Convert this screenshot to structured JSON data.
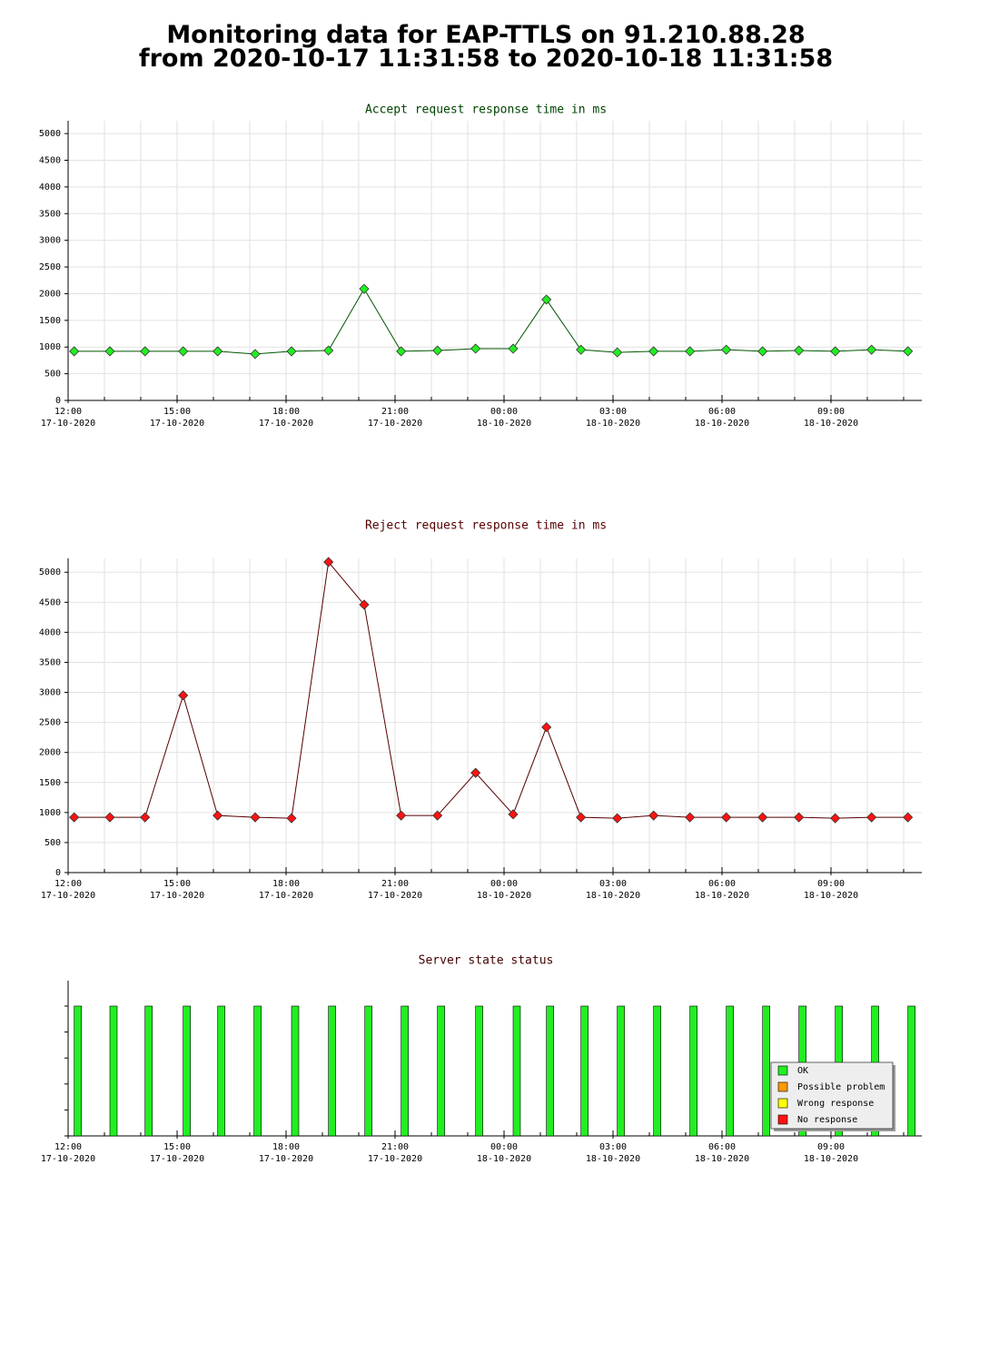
{
  "page_title": [
    "Monitoring data for EAP-TTLS on 91.210.88.28",
    "from 2020-10-17 11:31:58 to 2020-10-18 11:31:58"
  ],
  "chart_data": [
    {
      "type": "line",
      "title": "Accept request response time in ms",
      "title_color": "#004400",
      "x": [
        "2020-10-17 12:10",
        "2020-10-17 13:09",
        "2020-10-17 14:07",
        "2020-10-17 15:10",
        "2020-10-17 16:07",
        "2020-10-17 17:09",
        "2020-10-17 18:09",
        "2020-10-17 19:10",
        "2020-10-17 20:09",
        "2020-10-17 21:10",
        "2020-10-17 22:10",
        "2020-10-17 23:13",
        "2020-10-18 00:15",
        "2020-10-18 01:10",
        "2020-10-18 02:07",
        "2020-10-18 03:07",
        "2020-10-18 04:07",
        "2020-10-18 05:07",
        "2020-10-18 06:07",
        "2020-10-18 07:07",
        "2020-10-18 08:07",
        "2020-10-18 09:07",
        "2020-10-18 10:07",
        "2020-10-18 11:07"
      ],
      "values": [
        920,
        920,
        920,
        920,
        920,
        870,
        920,
        935,
        2090,
        920,
        935,
        970,
        970,
        1890,
        950,
        900,
        920,
        920,
        950,
        920,
        935,
        920,
        950,
        920
      ],
      "color": "#22ee22",
      "line_color": "#005500",
      "ylim": [
        0,
        5240
      ],
      "yticks": [
        0,
        500,
        1000,
        1500,
        2000,
        2500,
        3000,
        3500,
        4000,
        4500,
        5000
      ],
      "grid": true,
      "xlim": [
        "2020-10-17 12:00",
        "2020-10-18 11:30"
      ],
      "xticks": [
        {
          "value": "2020-10-17 12:00",
          "label": "12:00\n17-10-2020"
        },
        {
          "value": "2020-10-17 15:00",
          "label": "15:00\n17-10-2020"
        },
        {
          "value": "2020-10-17 18:00",
          "label": "18:00\n17-10-2020"
        },
        {
          "value": "2020-10-17 21:00",
          "label": "21:00\n17-10-2020"
        },
        {
          "value": "2020-10-18 00:00",
          "label": "00:00\n18-10-2020"
        },
        {
          "value": "2020-10-18 03:00",
          "label": "03:00\n18-10-2020"
        },
        {
          "value": "2020-10-18 06:00",
          "label": "06:00\n18-10-2020"
        },
        {
          "value": "2020-10-18 09:00",
          "label": "09:00\n18-10-2020"
        }
      ],
      "xminorticks": [
        "2020-10-17 13:00",
        "2020-10-17 14:00",
        "2020-10-17 16:00",
        "2020-10-17 17:00",
        "2020-10-17 19:00",
        "2020-10-17 20:00",
        "2020-10-17 22:00",
        "2020-10-17 23:00",
        "2020-10-18 01:00",
        "2020-10-18 02:00",
        "2020-10-18 04:00",
        "2020-10-18 05:00",
        "2020-10-18 07:00",
        "2020-10-18 08:00",
        "2020-10-18 10:00",
        "2020-10-18 11:00"
      ]
    },
    {
      "type": "line",
      "title": "Reject request response time in ms",
      "title_color": "#550000",
      "x": [
        "2020-10-17 12:10",
        "2020-10-17 13:09",
        "2020-10-17 14:07",
        "2020-10-17 15:10",
        "2020-10-17 16:07",
        "2020-10-17 17:09",
        "2020-10-17 18:09",
        "2020-10-17 19:10",
        "2020-10-17 20:09",
        "2020-10-17 21:10",
        "2020-10-17 22:10",
        "2020-10-17 23:13",
        "2020-10-18 00:15",
        "2020-10-18 01:10",
        "2020-10-18 02:07",
        "2020-10-18 03:07",
        "2020-10-18 04:07",
        "2020-10-18 05:07",
        "2020-10-18 06:07",
        "2020-10-18 07:07",
        "2020-10-18 08:07",
        "2020-10-18 09:07",
        "2020-10-18 10:07",
        "2020-10-18 11:07"
      ],
      "values": [
        920,
        920,
        920,
        2950,
        950,
        920,
        905,
        5170,
        4460,
        950,
        950,
        1660,
        970,
        2420,
        920,
        905,
        950,
        920,
        920,
        920,
        920,
        905,
        920,
        920
      ],
      "color": "#ff1111",
      "line_color": "#550000",
      "ylim": [
        0,
        5230
      ],
      "yticks": [
        0,
        500,
        1000,
        1500,
        2000,
        2500,
        3000,
        3500,
        4000,
        4500,
        5000
      ],
      "grid": true,
      "xlim": [
        "2020-10-17 12:00",
        "2020-10-18 11:30"
      ],
      "xticks": [
        {
          "value": "2020-10-17 12:00",
          "label": "12:00\n17-10-2020"
        },
        {
          "value": "2020-10-17 15:00",
          "label": "15:00\n17-10-2020"
        },
        {
          "value": "2020-10-17 18:00",
          "label": "18:00\n17-10-2020"
        },
        {
          "value": "2020-10-17 21:00",
          "label": "21:00\n17-10-2020"
        },
        {
          "value": "2020-10-18 00:00",
          "label": "00:00\n18-10-2020"
        },
        {
          "value": "2020-10-18 03:00",
          "label": "03:00\n18-10-2020"
        },
        {
          "value": "2020-10-18 06:00",
          "label": "06:00\n18-10-2020"
        },
        {
          "value": "2020-10-18 09:00",
          "label": "09:00\n18-10-2020"
        }
      ],
      "xminorticks": [
        "2020-10-17 13:00",
        "2020-10-17 14:00",
        "2020-10-17 16:00",
        "2020-10-17 17:00",
        "2020-10-17 19:00",
        "2020-10-17 20:00",
        "2020-10-17 22:00",
        "2020-10-17 23:00",
        "2020-10-18 01:00",
        "2020-10-18 02:00",
        "2020-10-18 04:00",
        "2020-10-18 05:00",
        "2020-10-18 07:00",
        "2020-10-18 08:00",
        "2020-10-18 10:00",
        "2020-10-18 11:00"
      ]
    },
    {
      "type": "status",
      "title": "Server state status",
      "title_color": "#440000",
      "x": [
        "2020-10-17 12:16",
        "2020-10-17 13:15",
        "2020-10-17 14:13",
        "2020-10-17 15:16",
        "2020-10-17 16:13",
        "2020-10-17 17:13",
        "2020-10-17 18:15",
        "2020-10-17 19:16",
        "2020-10-17 20:16",
        "2020-10-17 21:16",
        "2020-10-17 22:16",
        "2020-10-17 23:19",
        "2020-10-18 00:21",
        "2020-10-18 01:16",
        "2020-10-18 02:13",
        "2020-10-18 03:13",
        "2020-10-18 04:13",
        "2020-10-18 05:13",
        "2020-10-18 06:13",
        "2020-10-18 07:13",
        "2020-10-18 08:13",
        "2020-10-18 09:13",
        "2020-10-18 10:13",
        "2020-10-18 11:13"
      ],
      "values": [
        "OK",
        "OK",
        "OK",
        "OK",
        "OK",
        "OK",
        "OK",
        "OK",
        "OK",
        "OK",
        "OK",
        "OK",
        "OK",
        "OK",
        "OK",
        "OK",
        "OK",
        "OK",
        "OK",
        "OK",
        "OK",
        "OK",
        "OK",
        "OK"
      ],
      "legend": [
        {
          "name": "OK",
          "color": "#22ee22"
        },
        {
          "name": "Possible problem",
          "color": "#ff9900"
        },
        {
          "name": "Wrong response",
          "color": "#ffff00"
        },
        {
          "name": "No response",
          "color": "#ff1111"
        }
      ],
      "grid": false,
      "xlim": [
        "2020-10-17 12:00",
        "2020-10-18 11:30"
      ],
      "xticks": [
        {
          "value": "2020-10-17 12:00",
          "label": "12:00\n17-10-2020"
        },
        {
          "value": "2020-10-17 15:00",
          "label": "15:00\n17-10-2020"
        },
        {
          "value": "2020-10-17 18:00",
          "label": "18:00\n17-10-2020"
        },
        {
          "value": "2020-10-17 21:00",
          "label": "21:00\n17-10-2020"
        },
        {
          "value": "2020-10-18 00:00",
          "label": "00:00\n18-10-2020"
        },
        {
          "value": "2020-10-18 03:00",
          "label": "03:00\n18-10-2020"
        },
        {
          "value": "2020-10-18 06:00",
          "label": "06:00\n18-10-2020"
        },
        {
          "value": "2020-10-18 09:00",
          "label": "09:00\n18-10-2020"
        }
      ],
      "xminorticks": [
        "2020-10-17 13:00",
        "2020-10-17 14:00",
        "2020-10-17 16:00",
        "2020-10-17 17:00",
        "2020-10-17 19:00",
        "2020-10-17 20:00",
        "2020-10-17 22:00",
        "2020-10-17 23:00",
        "2020-10-18 01:00",
        "2020-10-18 02:00",
        "2020-10-18 04:00",
        "2020-10-18 05:00",
        "2020-10-18 07:00",
        "2020-10-18 08:00",
        "2020-10-18 10:00",
        "2020-10-18 11:00"
      ]
    }
  ]
}
